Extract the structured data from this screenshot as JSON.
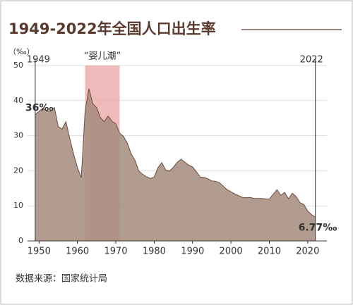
{
  "chart_data": {
    "type": "area",
    "title": "1949-2022年全国人口出生率",
    "y_unit": "（‰）",
    "source": "数据来源：国家统计局",
    "highlight": {
      "label": "“婴儿潮”",
      "x": [
        1962,
        1971
      ],
      "color": "#e9a3a3"
    },
    "year_markers": [
      1949,
      2022
    ],
    "x": [
      1949,
      1950,
      1951,
      1952,
      1953,
      1954,
      1955,
      1956,
      1957,
      1958,
      1959,
      1960,
      1961,
      1962,
      1963,
      1964,
      1965,
      1966,
      1967,
      1968,
      1969,
      1970,
      1971,
      1972,
      1973,
      1974,
      1975,
      1976,
      1977,
      1978,
      1979,
      1980,
      1981,
      1982,
      1983,
      1984,
      1985,
      1986,
      1987,
      1988,
      1989,
      1990,
      1991,
      1992,
      1993,
      1994,
      1995,
      1996,
      1997,
      1998,
      1999,
      2000,
      2001,
      2002,
      2003,
      2004,
      2005,
      2006,
      2007,
      2008,
      2009,
      2010,
      2011,
      2012,
      2013,
      2014,
      2015,
      2016,
      2017,
      2018,
      2019,
      2020,
      2021,
      2022
    ],
    "values": [
      36,
      37,
      37.8,
      37,
      37,
      38,
      32.6,
      31.9,
      34,
      29.2,
      24.8,
      20.9,
      18,
      37,
      43.4,
      39.1,
      38,
      35.1,
      34,
      35.6,
      34.1,
      33.4,
      30.7,
      29.8,
      27.9,
      24.8,
      23,
      19.9,
      19,
      18.3,
      17.8,
      18.2,
      20.9,
      22.3,
      20.2,
      19.9,
      21,
      22.4,
      23.3,
      22.4,
      21.6,
      21.1,
      19.7,
      18.2,
      18.1,
      17.7,
      17.1,
      17,
      16.6,
      15.6,
      14.6,
      14,
      13.4,
      12.9,
      12.4,
      12.3,
      12.4,
      12.1,
      12.1,
      12.1,
      12,
      11.9,
      13.3,
      14.6,
      13,
      13.8,
      12,
      13.6,
      12.6,
      10.9,
      10.4,
      8.5,
      7.5,
      6.77
    ],
    "value_labels": [
      "36‰",
      null,
      null,
      null,
      null,
      null,
      null,
      null,
      null,
      null,
      null,
      null,
      null,
      null,
      null,
      null,
      null,
      null,
      null,
      null,
      null,
      null,
      null,
      null,
      null,
      null,
      null,
      null,
      null,
      null,
      null,
      null,
      null,
      null,
      null,
      null,
      null,
      null,
      null,
      null,
      null,
      null,
      null,
      null,
      null,
      null,
      null,
      null,
      null,
      null,
      null,
      null,
      null,
      null,
      null,
      null,
      null,
      null,
      null,
      null,
      null,
      null,
      null,
      null,
      null,
      null,
      null,
      null,
      null,
      null,
      null,
      null,
      null,
      "6.77‰"
    ],
    "color": "#a48b7d",
    "line_color": "#6e4c40",
    "xlim": [
      1947,
      2025
    ],
    "xticks": [
      1950,
      1960,
      1970,
      1980,
      1990,
      2000,
      2010,
      2020
    ],
    "ylim": [
      0,
      50
    ],
    "yticks": [
      0,
      10,
      20,
      30,
      40,
      50
    ],
    "grid": true
  }
}
